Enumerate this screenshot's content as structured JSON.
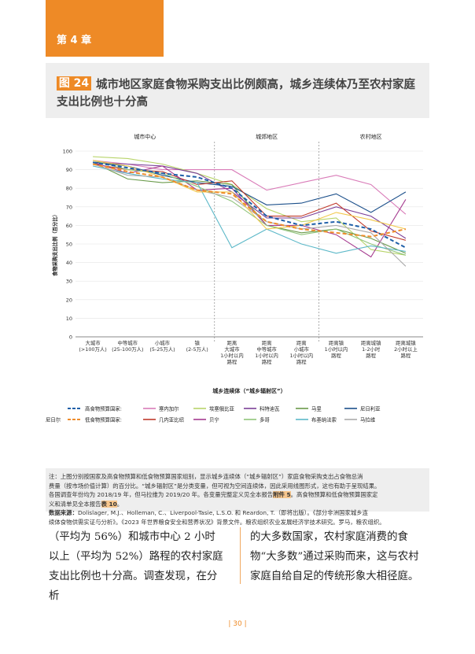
{
  "chapter": "第 4 章",
  "figure": {
    "number": "图 24",
    "title": "城市地区家庭食物采购支出比例颇高，城乡连续体乃至农村家庭支出比例也十分高"
  },
  "chart_data": {
    "type": "line",
    "ylabel": "食物采购支出比例（百分比）",
    "xlabel": "城乡连续体（“城乡辐射区”）",
    "ylim": [
      0,
      100
    ],
    "yticks": [
      0,
      10,
      20,
      30,
      40,
      50,
      60,
      70,
      80,
      90,
      100
    ],
    "groups": [
      "城市中心",
      "城郊地区",
      "农村地区"
    ],
    "categories": [
      "大城市\n(>100万人)",
      "中等城市\n(25-100万人)",
      "小城市\n(5-25万人)",
      "镇\n(2-5万人)",
      "距离\n大城市\n1小时以内\n路程",
      "距离\n中等城市\n1小时以内\n路程",
      "距离\n小城市\n1小时以内\n路程",
      "距离镇\n1小时以内\n路程",
      "距离城镇\n1-2小时\n路程",
      "距离城镇\n2小时以上\n路程"
    ],
    "series": [
      {
        "name": "塞内加尔",
        "color": "#d97bb8",
        "dash": false,
        "values": [
          95,
          93,
          90,
          90,
          90,
          79,
          83,
          87,
          82,
          66
        ]
      },
      {
        "name": "埃塞俄比亚",
        "color": "#b8d46a",
        "dash": false,
        "values": [
          97,
          96,
          93,
          88,
          82,
          69,
          62,
          64,
          47,
          44
        ]
      },
      {
        "name": "科特迪瓦",
        "color": "#7b3f98",
        "dash": false,
        "values": [
          94,
          93,
          92,
          88,
          78,
          64,
          64,
          70,
          65,
          53
        ]
      },
      {
        "name": "马里",
        "color": "#6a9a4a",
        "dash": false,
        "values": [
          94,
          85,
          83,
          84,
          82,
          60,
          56,
          58,
          53,
          45
        ]
      },
      {
        "name": "尼日利亚",
        "color": "#1b4f8a",
        "dash": false,
        "values": [
          94,
          92,
          87,
          83,
          81,
          71,
          72,
          77,
          67,
          78
        ]
      },
      {
        "name": "几内亚比绍",
        "color": "#c0392b",
        "dash": false,
        "values": [
          93,
          90,
          89,
          82,
          84,
          65,
          65,
          72,
          57,
          52
        ]
      },
      {
        "name": "贝宁",
        "color": "#a53a8f",
        "dash": false,
        "values": [
          94,
          88,
          92,
          79,
          80,
          60,
          60,
          55,
          43,
          74
        ]
      },
      {
        "name": "多哥",
        "color": "#8fc47a",
        "dash": false,
        "values": [
          95,
          90,
          88,
          81,
          73,
          60,
          55,
          58,
          50,
          44
        ]
      },
      {
        "name": "布基纳法索",
        "color": "#5cb8c8",
        "dash": false,
        "values": [
          92,
          88,
          85,
          83,
          48,
          58,
          50,
          45,
          49,
          46
        ]
      },
      {
        "name": "马拉维",
        "color": "#aaaaaa",
        "dash": false,
        "values": [
          93,
          87,
          86,
          79,
          75,
          62,
          58,
          60,
          56,
          38
        ]
      },
      {
        "name": "尼日尔",
        "color": "#f2c94c",
        "dash": false,
        "values": [
          95,
          92,
          86,
          78,
          78,
          58,
          60,
          67,
          63,
          58
        ]
      },
      {
        "name": "高食物预算国家:",
        "color": "#1f5fa8",
        "dash": true,
        "values": [
          94,
          91,
          88,
          86,
          80,
          65,
          60,
          62,
          58,
          48
        ]
      },
      {
        "name": "低食物预算国家:",
        "color": "#ef8c2b",
        "dash": true,
        "values": [
          93,
          89,
          86,
          79,
          77,
          62,
          58,
          56,
          54,
          58
        ]
      }
    ]
  },
  "note": {
    "line1": "注：上图分别按国家及高食物预算和低食物预算国家组别，显示城乡连续体（“城乡辐射区”）家庭食物采购支出占食物总消",
    "line2": "费量（按市场价值计算）的百分比。“城乡辐射区”是分类变量，但可视为空间连续体，因此采用线图形式，这也有助于呈现结果。",
    "line3a": "各国调查年份均为 2018/19 年，但马拉维为 2019/20 年。各变量完整定义见全本报告",
    "line3b": "附件 5",
    "line3c": "。高食物预算和低食物预算国家定",
    "line4a": "义和清单见全本报告",
    "line4b": "表 10",
    "line4c": "。",
    "source_label": "数据来源：",
    "source1": "Dolislager, M.J.、Holleman, C.、Liverpool-Tasie, L.S.O. 和 Reardon, T.（即将出版）。《部分非洲国家城乡连",
    "source2": "续体食物供需实证与分析》。《2023 年世界粮食安全和营养状况》背景文件。粮农组织农业发展经济学技术研究。罗马，粮农组织。"
  },
  "body_left": "（平均为 56%）和城市中心 2 小时以上（平均为 52%）路程的农村家庭支出比例也十分高。调查发现，在分析",
  "body_right": "的大多数国家，农村家庭消费的食物“大多数”通过采购而来，这与农村家庭自给自足的传统形象大相径庭。",
  "page_number": "| 30 |"
}
